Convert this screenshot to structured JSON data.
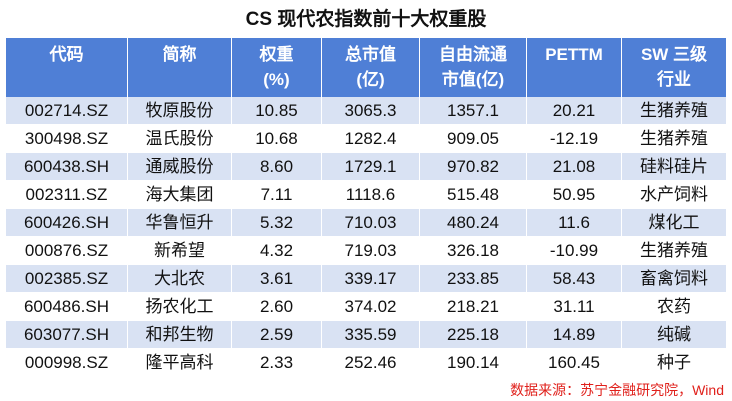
{
  "title": "CS 现代农指数前十大权重股",
  "table": {
    "header": [
      [
        "代码"
      ],
      [
        "简称"
      ],
      [
        "权重",
        "(%)"
      ],
      [
        "总市值",
        "(亿)"
      ],
      [
        "自由流通",
        "市值(亿)"
      ],
      [
        "PETTM"
      ],
      [
        "SW 三级",
        "行业"
      ]
    ],
    "rows": [
      [
        "002714.SZ",
        "牧原股份",
        "10.85",
        "3065.3",
        "1357.1",
        "20.21",
        "生猪养殖"
      ],
      [
        "300498.SZ",
        "温氏股份",
        "10.68",
        "1282.4",
        "909.05",
        "-12.19",
        "生猪养殖"
      ],
      [
        "600438.SH",
        "通威股份",
        "8.60",
        "1729.1",
        "970.82",
        "21.08",
        "硅料硅片"
      ],
      [
        "002311.SZ",
        "海大集团",
        "7.11",
        "1118.6",
        "515.48",
        "50.95",
        "水产饲料"
      ],
      [
        "600426.SH",
        "华鲁恒升",
        "5.32",
        "710.03",
        "480.24",
        "11.6",
        "煤化工"
      ],
      [
        "000876.SZ",
        "新希望",
        "4.32",
        "719.03",
        "326.18",
        "-10.99",
        "生猪养殖"
      ],
      [
        "002385.SZ",
        "大北农",
        "3.61",
        "339.17",
        "233.85",
        "58.43",
        "畜禽饲料"
      ],
      [
        "600486.SH",
        "扬农化工",
        "2.60",
        "374.02",
        "218.21",
        "31.11",
        "农药"
      ],
      [
        "603077.SH",
        "和邦生物",
        "2.59",
        "335.59",
        "225.18",
        "14.89",
        "纯碱"
      ],
      [
        "000998.SZ",
        "隆平高科",
        "2.33",
        "252.46",
        "190.14",
        "160.45",
        "种子"
      ]
    ]
  },
  "source": "数据来源：苏宁金融研究院，Wind"
}
